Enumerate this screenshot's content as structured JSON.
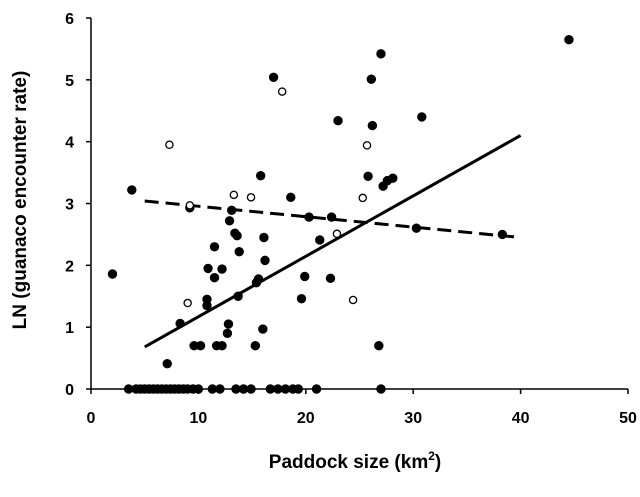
{
  "chart_data": {
    "type": "scatter",
    "xlabel": "Paddock size (km",
    "xlabel_superscript": "2",
    "xlabel_suffix": ")",
    "ylabel": "LN (guanaco encounter rate)",
    "xlim": [
      0,
      50
    ],
    "ylim": [
      0,
      6
    ],
    "x_ticks": [
      "0",
      "10",
      "20",
      "30",
      "40",
      "50"
    ],
    "y_ticks": [
      "0",
      "1",
      "2",
      "3",
      "4",
      "5",
      "6"
    ],
    "grid": false,
    "legend": "none",
    "series": [
      {
        "marker": "filled-circle",
        "points": [
          [
            2.0,
            1.86
          ],
          [
            3.5,
            0
          ],
          [
            3.8,
            3.22
          ],
          [
            4.2,
            0
          ],
          [
            4.6,
            0
          ],
          [
            5.0,
            0
          ],
          [
            5.4,
            0
          ],
          [
            5.8,
            0
          ],
          [
            6.2,
            0
          ],
          [
            6.6,
            0
          ],
          [
            7.0,
            0
          ],
          [
            7.1,
            0.41
          ],
          [
            7.4,
            0
          ],
          [
            7.8,
            0
          ],
          [
            8.2,
            0
          ],
          [
            8.6,
            0
          ],
          [
            8.3,
            1.06
          ],
          [
            9.0,
            0
          ],
          [
            9.2,
            2.93
          ],
          [
            9.5,
            0
          ],
          [
            9.6,
            0.7
          ],
          [
            10.0,
            0
          ],
          [
            10.2,
            0.7
          ],
          [
            10.8,
            1.45
          ],
          [
            10.8,
            1.35
          ],
          [
            10.9,
            1.95
          ],
          [
            11.3,
            0
          ],
          [
            11.5,
            2.3
          ],
          [
            11.5,
            1.8
          ],
          [
            11.7,
            0.7
          ],
          [
            12.0,
            0
          ],
          [
            12.2,
            0.7
          ],
          [
            12.2,
            1.94
          ],
          [
            12.7,
            0.9
          ],
          [
            12.8,
            1.05
          ],
          [
            12.9,
            2.72
          ],
          [
            13.1,
            2.89
          ],
          [
            13.4,
            2.52
          ],
          [
            13.6,
            2.48
          ],
          [
            13.7,
            1.5
          ],
          [
            13.8,
            2.22
          ],
          [
            13.5,
            0
          ],
          [
            14.2,
            0
          ],
          [
            14.9,
            0
          ],
          [
            15.3,
            0.7
          ],
          [
            15.4,
            1.72
          ],
          [
            15.6,
            1.78
          ],
          [
            15.8,
            3.45
          ],
          [
            16.0,
            0.97
          ],
          [
            16.1,
            2.45
          ],
          [
            16.2,
            2.08
          ],
          [
            16.7,
            0
          ],
          [
            17.0,
            5.04
          ],
          [
            17.4,
            0
          ],
          [
            18.1,
            0
          ],
          [
            18.6,
            3.1
          ],
          [
            18.8,
            0
          ],
          [
            19.3,
            0
          ],
          [
            19.6,
            1.46
          ],
          [
            19.9,
            1.82
          ],
          [
            20.3,
            2.78
          ],
          [
            21.0,
            0
          ],
          [
            21.3,
            2.41
          ],
          [
            22.3,
            1.79
          ],
          [
            22.4,
            2.78
          ],
          [
            23.0,
            4.34
          ],
          [
            25.8,
            3.44
          ],
          [
            26.1,
            5.01
          ],
          [
            26.2,
            4.26
          ],
          [
            26.8,
            0.7
          ],
          [
            27.0,
            0
          ],
          [
            27.2,
            3.28
          ],
          [
            27.0,
            5.42
          ],
          [
            27.6,
            3.37
          ],
          [
            28.1,
            3.41
          ],
          [
            30.3,
            2.6
          ],
          [
            30.8,
            4.4
          ],
          [
            38.3,
            2.5
          ],
          [
            44.5,
            5.65
          ]
        ]
      },
      {
        "marker": "open-circle",
        "points": [
          [
            7.3,
            3.95
          ],
          [
            9.0,
            1.39
          ],
          [
            9.2,
            2.97
          ],
          [
            13.3,
            3.14
          ],
          [
            14.9,
            3.1
          ],
          [
            17.8,
            4.81
          ],
          [
            22.9,
            2.51
          ],
          [
            24.4,
            1.44
          ],
          [
            25.3,
            3.09
          ],
          [
            25.7,
            3.94
          ]
        ]
      }
    ],
    "trend_lines": [
      {
        "style": "solid",
        "x": [
          5,
          40
        ],
        "y": [
          0.68,
          4.1
        ]
      },
      {
        "style": "dashed",
        "x": [
          5,
          40
        ],
        "y": [
          3.04,
          2.45
        ]
      }
    ]
  }
}
